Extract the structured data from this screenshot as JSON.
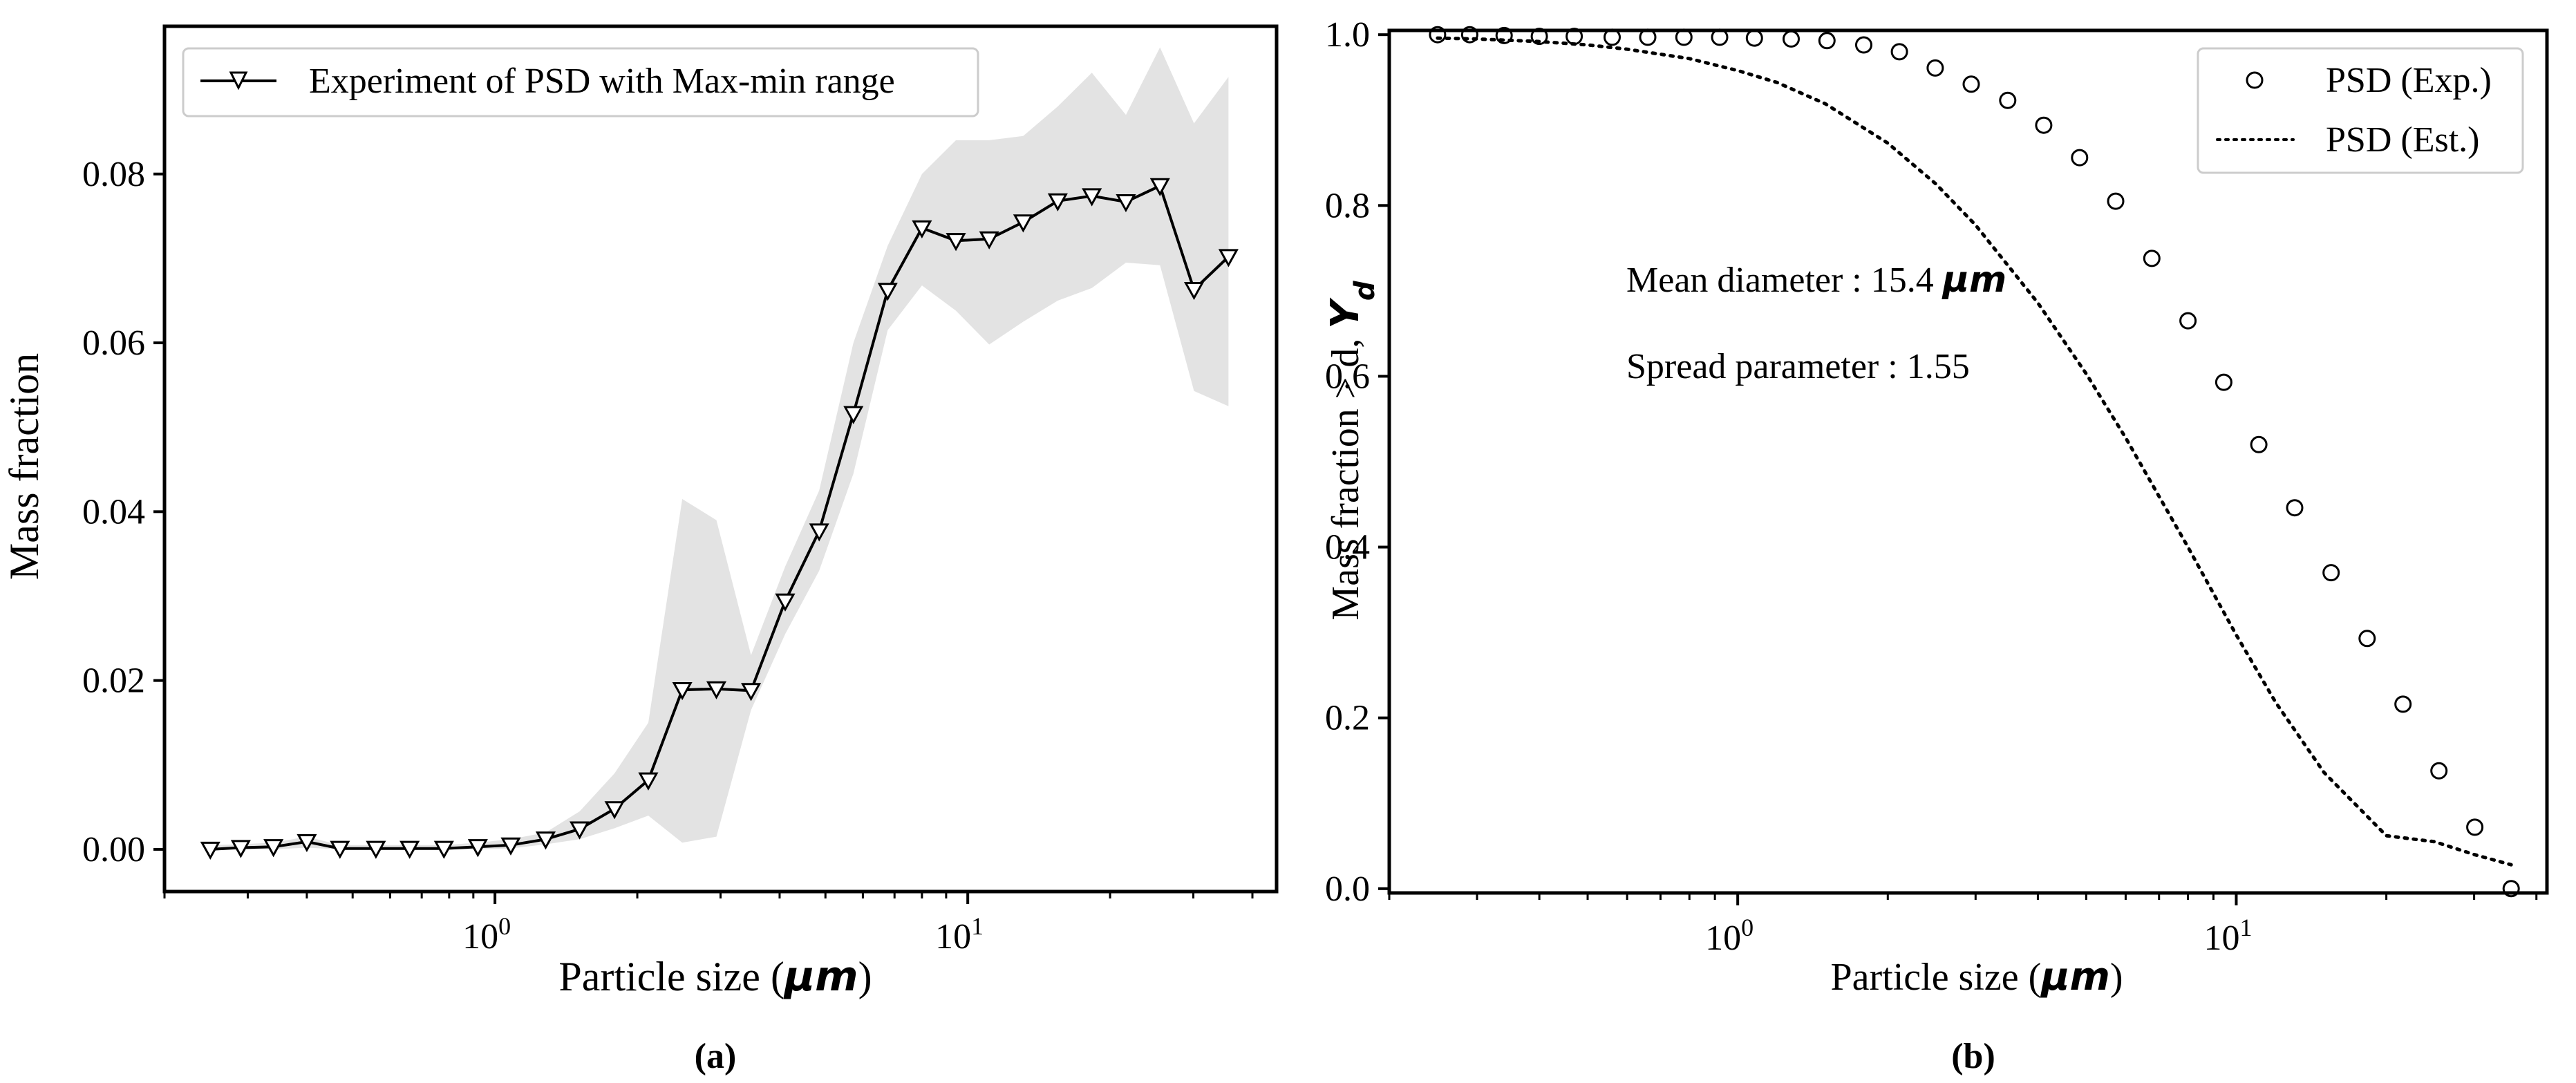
{
  "chart_data": [
    {
      "type": "line",
      "panel_label": "(a)",
      "xlabel_prefix": "Particle size (",
      "xlabel_unit": "μm",
      "xlabel_suffix": ")",
      "ylabel": "Mass fraction",
      "xscale": "log",
      "xlim": [
        0.2,
        45
      ],
      "ylim": [
        -0.005,
        0.0975
      ],
      "yticks": [
        0.0,
        0.02,
        0.04,
        0.06,
        0.08
      ],
      "ytick_labels": [
        "0.00",
        "0.02",
        "0.04",
        "0.06",
        "0.08"
      ],
      "xticks": [
        1,
        10
      ],
      "xtick_base": "10",
      "xtick_exponents": [
        "0",
        "1"
      ],
      "legend_position": "top-left",
      "series": [
        {
          "name": "Experiment of PSD with Max-min range",
          "marker": "triangle-down",
          "color": "#000000",
          "x": [
            0.25,
            0.29,
            0.34,
            0.4,
            0.47,
            0.56,
            0.66,
            0.78,
            0.92,
            1.08,
            1.28,
            1.51,
            1.79,
            2.11,
            2.49,
            2.94,
            3.48,
            4.11,
            4.85,
            5.73,
            6.77,
            8.0,
            9.44,
            11.1,
            13.1,
            15.5,
            18.3,
            21.6,
            25.5,
            30.1,
            35.6
          ],
          "values": [
            0.0,
            0.0002,
            0.0003,
            0.0009,
            0.0001,
            0.0001,
            0.0001,
            0.0001,
            0.0003,
            0.0005,
            0.0012,
            0.0024,
            0.0048,
            0.0082,
            0.0189,
            0.019,
            0.0188,
            0.0294,
            0.0377,
            0.0516,
            0.0662,
            0.0736,
            0.0721,
            0.0723,
            0.0743,
            0.0768,
            0.0774,
            0.0767,
            0.0786,
            0.0663,
            0.0702
          ]
        }
      ],
      "range_band": {
        "name": "Max-min range",
        "color": "#e3e3e3",
        "x": [
          0.25,
          0.29,
          0.34,
          0.4,
          0.47,
          0.56,
          0.66,
          0.78,
          0.92,
          1.08,
          1.28,
          1.51,
          1.79,
          2.11,
          2.49,
          2.94,
          3.48,
          4.11,
          4.85,
          5.73,
          6.77,
          8.0,
          9.44,
          11.1,
          13.1,
          15.5,
          18.3,
          21.6,
          25.5,
          30.1,
          35.6
        ],
        "max": [
          0.0005,
          0.0006,
          0.0008,
          0.0015,
          0.0005,
          0.0005,
          0.0005,
          0.0005,
          0.0008,
          0.0012,
          0.002,
          0.0045,
          0.009,
          0.015,
          0.0415,
          0.039,
          0.023,
          0.0335,
          0.0425,
          0.06,
          0.0715,
          0.08,
          0.084,
          0.084,
          0.0845,
          0.088,
          0.092,
          0.087,
          0.095,
          0.086,
          0.0915
        ],
        "min": [
          0.0,
          0.0,
          0.0,
          0.0002,
          0.0,
          0.0,
          0.0,
          0.0,
          0.0,
          0.0001,
          0.0006,
          0.0012,
          0.0025,
          0.004,
          0.0008,
          0.0015,
          0.0165,
          0.0255,
          0.033,
          0.0445,
          0.0615,
          0.0668,
          0.0638,
          0.0598,
          0.0625,
          0.065,
          0.0665,
          0.0695,
          0.0692,
          0.0543,
          0.0525
        ]
      }
    },
    {
      "type": "scatter",
      "panel_label": "(b)",
      "xlabel_prefix": "Particle size (",
      "xlabel_unit": "μm",
      "xlabel_suffix": ")",
      "ylabel_prefix": "Mass fraction > d, ",
      "ylabel_symbol": "Y",
      "ylabel_subscript": "d",
      "xscale": "log",
      "xlim": [
        0.2,
        42
      ],
      "ylim": [
        -0.005,
        1.005
      ],
      "yticks": [
        0.0,
        0.2,
        0.4,
        0.6,
        0.8,
        1.0
      ],
      "ytick_labels": [
        "0.0",
        "0.2",
        "0.4",
        "0.6",
        "0.8",
        "1.0"
      ],
      "xticks": [
        1,
        10
      ],
      "xtick_base": "10",
      "xtick_exponents": [
        "0",
        "1"
      ],
      "legend_position": "top-right",
      "annotations": {
        "mean_label": "Mean diameter : 15.4 ",
        "mean_unit": "μm",
        "spread_label": "Spread parameter : 1.55"
      },
      "series": [
        {
          "name": "PSD (Exp.)",
          "marker": "circle-open",
          "x": [
            0.25,
            0.29,
            0.34,
            0.4,
            0.47,
            0.56,
            0.66,
            0.78,
            0.92,
            1.08,
            1.28,
            1.51,
            1.79,
            2.11,
            2.49,
            2.94,
            3.48,
            4.11,
            4.85,
            5.73,
            6.77,
            8.0,
            9.44,
            11.1,
            13.1,
            15.5,
            18.3,
            21.6,
            25.5,
            30.1,
            35.6
          ],
          "values": [
            1.0,
            1.0,
            0.999,
            0.998,
            0.998,
            0.997,
            0.997,
            0.997,
            0.997,
            0.996,
            0.995,
            0.993,
            0.988,
            0.98,
            0.961,
            0.942,
            0.923,
            0.894,
            0.856,
            0.805,
            0.738,
            0.665,
            0.593,
            0.52,
            0.446,
            0.37,
            0.293,
            0.216,
            0.138,
            0.072,
            0.0
          ]
        },
        {
          "name": "PSD (Est.)",
          "style": "dotted",
          "x": [
            0.25,
            0.3,
            0.4,
            0.5,
            0.6,
            0.8,
            1.0,
            1.2,
            1.5,
            2.0,
            2.5,
            3.0,
            4.0,
            5.0,
            6.0,
            8.0,
            10.0,
            12.0,
            15.0,
            20.0,
            25.0,
            30.0,
            35.6
          ],
          "values": [
            0.996,
            0.995,
            0.992,
            0.988,
            0.983,
            0.972,
            0.958,
            0.944,
            0.919,
            0.873,
            0.825,
            0.777,
            0.686,
            0.603,
            0.528,
            0.4,
            0.297,
            0.218,
            0.136,
            0.062,
            0.055,
            0.04,
            0.028
          ]
        }
      ]
    }
  ]
}
